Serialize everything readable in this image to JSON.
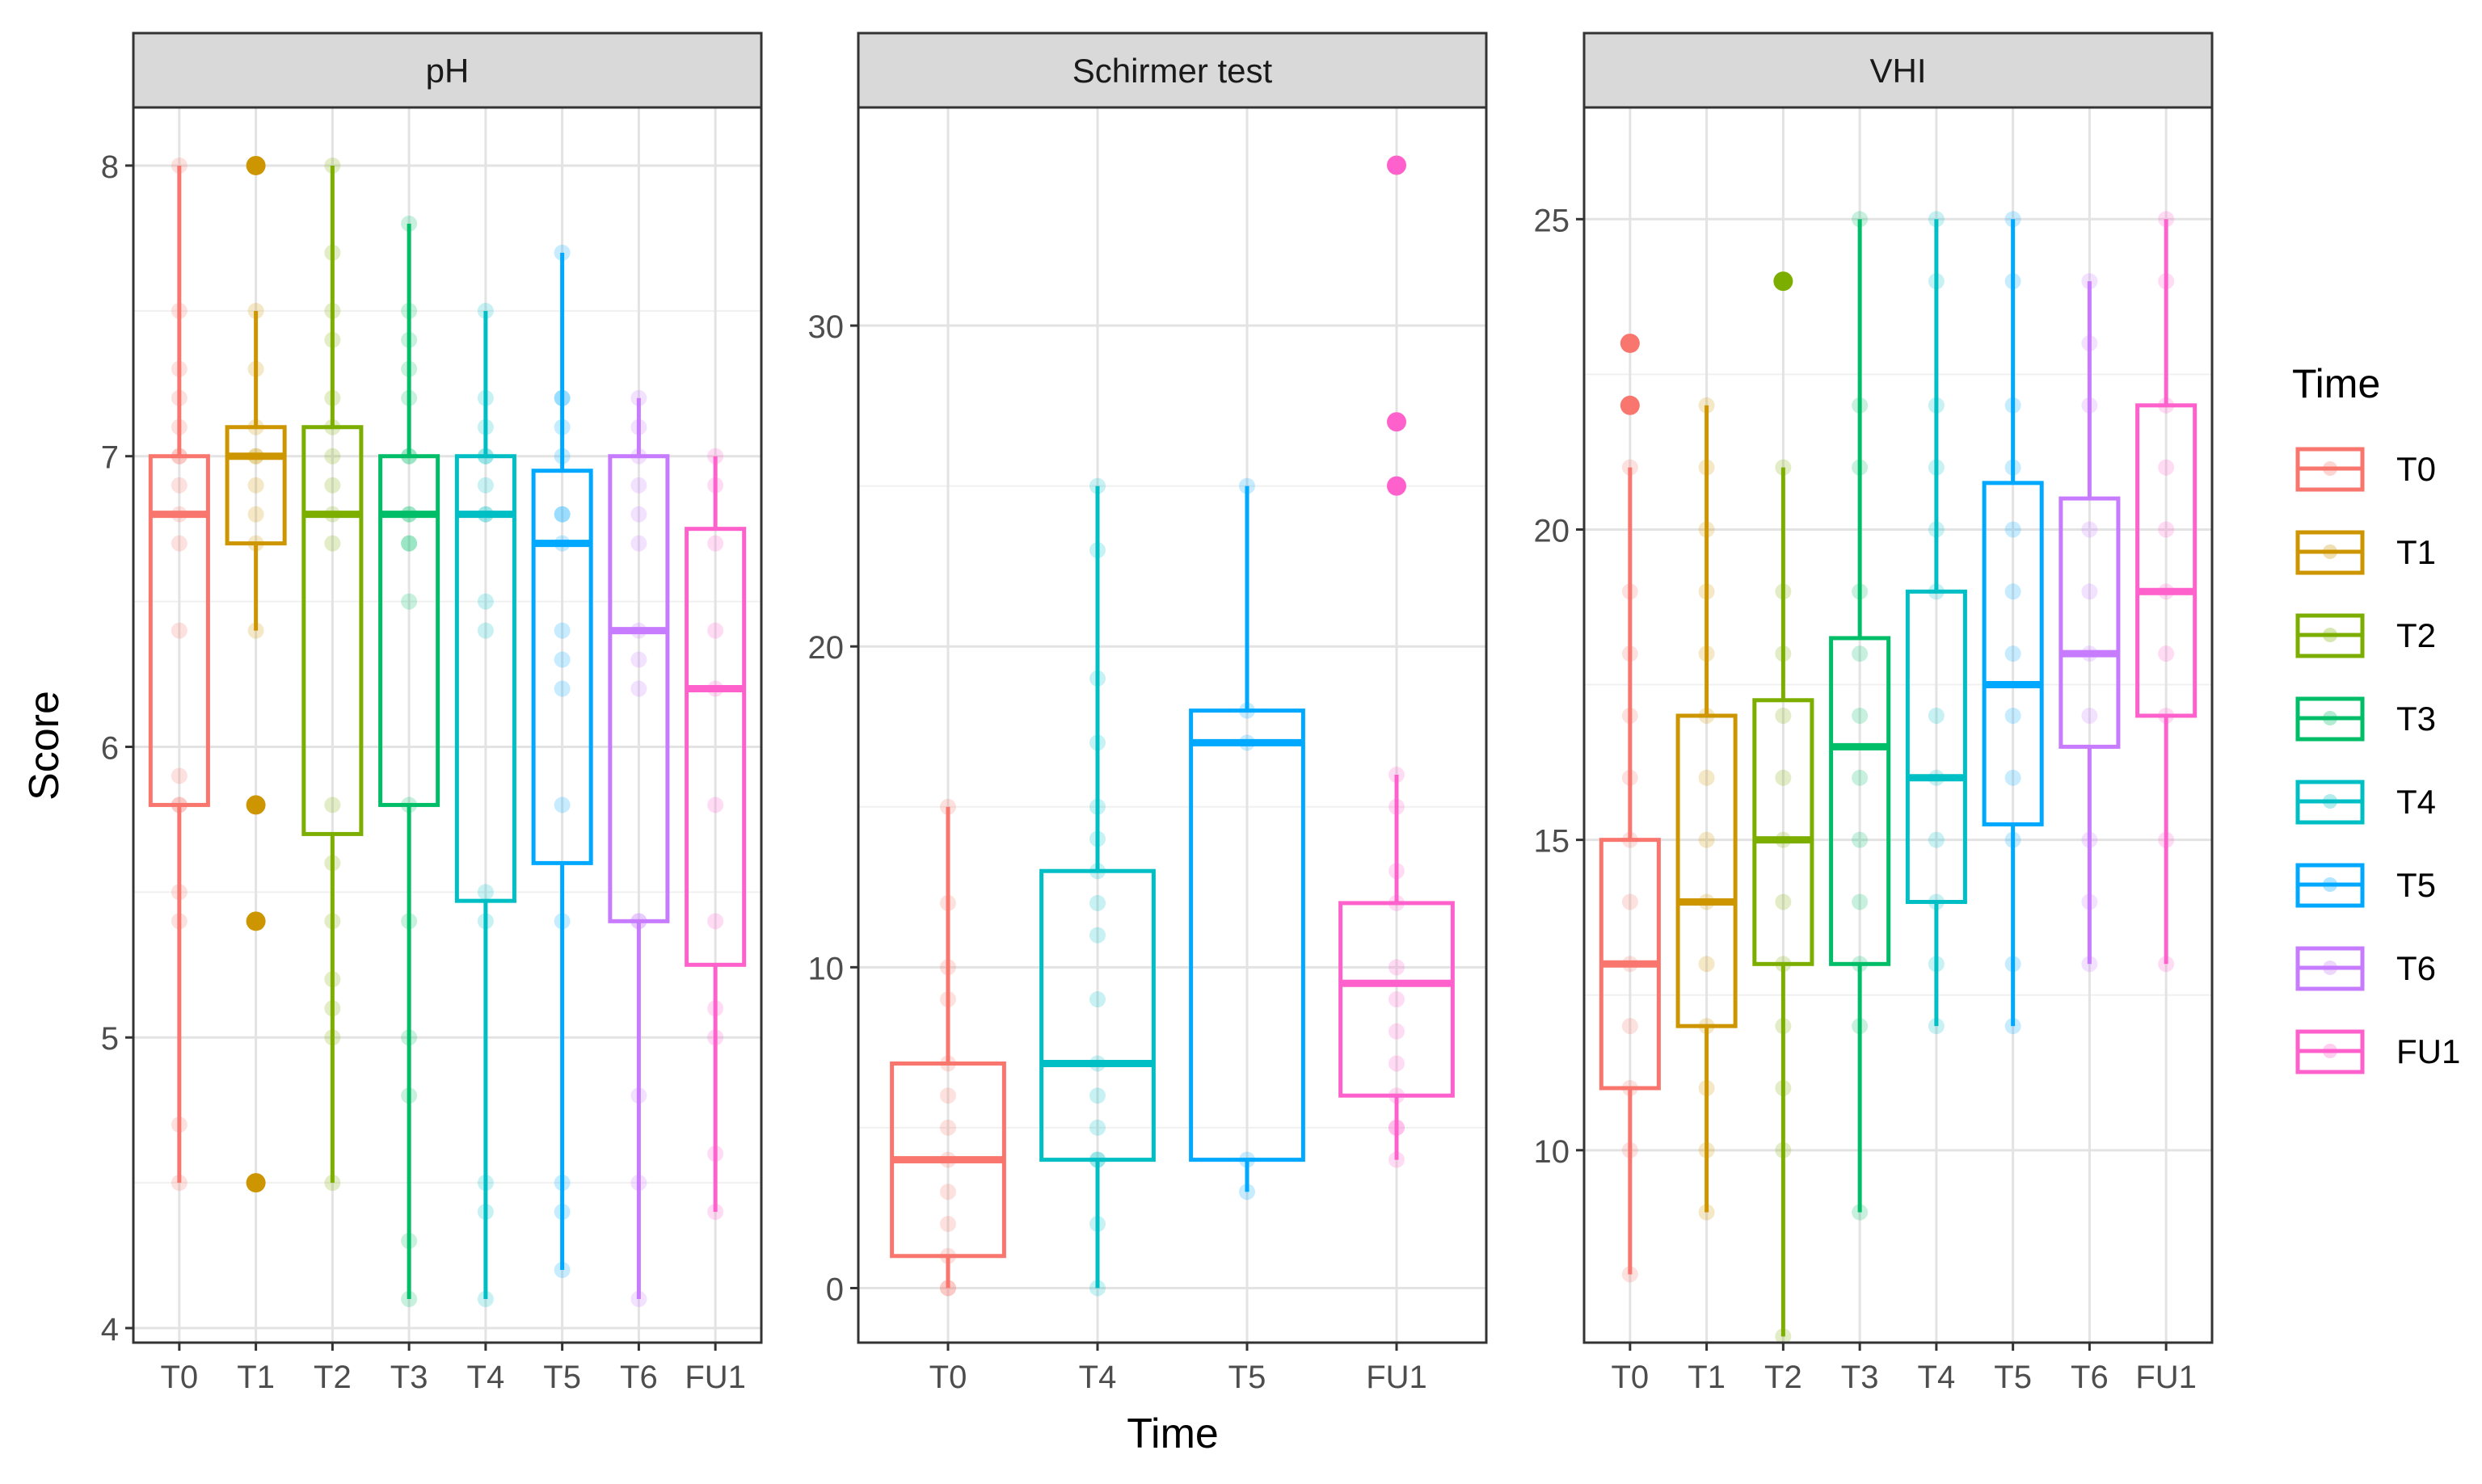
{
  "chart_data": {
    "type": "boxplot",
    "xlabel": "Time",
    "ylabel": "Score",
    "legend": {
      "title": "Time",
      "position": "right",
      "entries": [
        "T0",
        "T1",
        "T2",
        "T3",
        "T4",
        "T5",
        "T6",
        "FU1"
      ]
    },
    "colors": {
      "T0": "#F8766D",
      "T1": "#CD9600",
      "T2": "#7CAE00",
      "T3": "#00BE67",
      "T4": "#00BFC4",
      "T5": "#00A9FF",
      "T6": "#C77CFF",
      "FU1": "#FF61CC"
    },
    "panels": [
      {
        "title": "pH",
        "ylim": [
          3.95,
          8.2
        ],
        "yticks": [
          4,
          5,
          6,
          7,
          8
        ],
        "categories": [
          "T0",
          "T1",
          "T2",
          "T3",
          "T4",
          "T5",
          "T6",
          "FU1"
        ],
        "boxes": [
          {
            "group": "T0",
            "q1": 5.8,
            "median": 6.8,
            "q3": 7.0,
            "whisker_low": 4.5,
            "whisker_high": 8.0,
            "outliers": [],
            "points": [
              4.5,
              4.7,
              5.4,
              5.5,
              5.8,
              5.8,
              5.9,
              6.4,
              6.7,
              6.8,
              6.9,
              7.0,
              7.0,
              7.1,
              7.2,
              7.3,
              7.5,
              8.0
            ]
          },
          {
            "group": "T1",
            "q1": 6.7,
            "median": 7.0,
            "q3": 7.1,
            "whisker_low": 6.4,
            "whisker_high": 7.5,
            "outliers": [
              4.5,
              5.4,
              5.8,
              8.0
            ],
            "points": [
              4.5,
              5.4,
              5.8,
              6.4,
              6.7,
              6.8,
              6.9,
              7.0,
              7.0,
              7.1,
              7.3,
              7.5,
              8.0
            ]
          },
          {
            "group": "T2",
            "q1": 5.7,
            "median": 6.8,
            "q3": 7.1,
            "whisker_low": 4.5,
            "whisker_high": 8.0,
            "outliers": [],
            "points": [
              4.5,
              5.0,
              5.1,
              5.2,
              5.4,
              5.6,
              5.8,
              6.7,
              6.8,
              6.9,
              7.0,
              7.1,
              7.2,
              7.4,
              7.5,
              7.7,
              8.0
            ]
          },
          {
            "group": "T3",
            "q1": 5.8,
            "median": 6.8,
            "q3": 7.0,
            "whisker_low": 4.1,
            "whisker_high": 7.8,
            "outliers": [],
            "points": [
              4.1,
              4.3,
              4.8,
              5.0,
              5.4,
              5.8,
              6.5,
              6.7,
              6.7,
              6.8,
              6.8,
              7.0,
              7.0,
              7.2,
              7.3,
              7.4,
              7.5,
              7.8
            ]
          },
          {
            "group": "T4",
            "q1": 5.47,
            "median": 6.8,
            "q3": 7.0,
            "whisker_low": 4.1,
            "whisker_high": 7.5,
            "outliers": [],
            "points": [
              4.1,
              4.4,
              4.5,
              5.4,
              5.5,
              6.4,
              6.5,
              6.8,
              6.8,
              6.9,
              7.0,
              7.0,
              7.1,
              7.2,
              7.5
            ]
          },
          {
            "group": "T5",
            "q1": 5.6,
            "median": 6.7,
            "q3": 6.95,
            "whisker_low": 4.2,
            "whisker_high": 7.7,
            "outliers": [],
            "points": [
              4.2,
              4.4,
              4.5,
              5.4,
              5.8,
              6.2,
              6.3,
              6.4,
              6.7,
              6.8,
              6.8,
              7.0,
              7.1,
              7.2,
              7.2,
              7.7
            ]
          },
          {
            "group": "T6",
            "q1": 5.4,
            "median": 6.4,
            "q3": 7.0,
            "whisker_low": 4.1,
            "whisker_high": 7.2,
            "outliers": [],
            "points": [
              4.1,
              4.5,
              4.8,
              5.4,
              5.4,
              6.2,
              6.3,
              6.4,
              6.7,
              6.8,
              6.9,
              7.0,
              7.1,
              7.2
            ]
          },
          {
            "group": "FU1",
            "q1": 5.25,
            "median": 6.2,
            "q3": 6.75,
            "whisker_low": 4.4,
            "whisker_high": 7.0,
            "outliers": [],
            "points": [
              4.4,
              4.6,
              5.0,
              5.1,
              5.4,
              5.8,
              6.2,
              6.4,
              6.7,
              6.9,
              7.0
            ]
          }
        ]
      },
      {
        "title": "Schirmer test",
        "ylim": [
          -1.7,
          36.8
        ],
        "yticks": [
          0,
          10,
          20,
          30
        ],
        "categories": [
          "T0",
          "T4",
          "T5",
          "FU1"
        ],
        "boxes": [
          {
            "group": "T0",
            "q1": 1,
            "median": 4,
            "q3": 7,
            "whisker_low": 0,
            "whisker_high": 15,
            "outliers": [],
            "points": [
              0,
              0,
              1,
              2,
              3,
              4,
              5,
              6,
              7,
              9,
              10,
              12,
              15
            ]
          },
          {
            "group": "T4",
            "q1": 4,
            "median": 7,
            "q3": 13,
            "whisker_low": 0,
            "whisker_high": 25,
            "outliers": [],
            "points": [
              0,
              2,
              4,
              4,
              5,
              6,
              7,
              9,
              11,
              12,
              13,
              14,
              15,
              17,
              19,
              23,
              25
            ]
          },
          {
            "group": "T5",
            "q1": 4,
            "median": 17,
            "q3": 18,
            "whisker_low": 3,
            "whisker_high": 25,
            "outliers": [],
            "points": [
              3,
              4,
              17,
              18,
              25
            ]
          },
          {
            "group": "FU1",
            "q1": 6,
            "median": 9.5,
            "q3": 12,
            "whisker_low": 4,
            "whisker_high": 16,
            "outliers": [
              25,
              27,
              35
            ],
            "points": [
              4,
              5,
              5,
              6,
              7,
              8,
              9,
              10,
              12,
              13,
              15,
              16,
              25,
              27,
              35
            ]
          }
        ]
      },
      {
        "title": "VHI",
        "ylim": [
          6.9,
          26.8
        ],
        "yticks": [
          10,
          15,
          20,
          25
        ],
        "categories": [
          "T0",
          "T1",
          "T2",
          "T3",
          "T4",
          "T5",
          "T6",
          "FU1"
        ],
        "boxes": [
          {
            "group": "T0",
            "q1": 11,
            "median": 13,
            "q3": 15,
            "whisker_low": 8,
            "whisker_high": 21,
            "outliers": [
              22,
              23
            ],
            "points": [
              8,
              10,
              11,
              12,
              13,
              14,
              15,
              16,
              17,
              18,
              19,
              21,
              22,
              23
            ]
          },
          {
            "group": "T1",
            "q1": 12,
            "median": 14,
            "q3": 17,
            "whisker_low": 9,
            "whisker_high": 22,
            "outliers": [],
            "points": [
              9,
              10,
              11,
              12,
              13,
              14,
              15,
              16,
              17,
              18,
              19,
              20,
              21,
              22
            ]
          },
          {
            "group": "T2",
            "q1": 13,
            "median": 15,
            "q3": 17.25,
            "whisker_low": 7,
            "whisker_high": 21,
            "outliers": [
              24
            ],
            "points": [
              7,
              10,
              11,
              12,
              13,
              14,
              15,
              16,
              17,
              18,
              19,
              21,
              24
            ]
          },
          {
            "group": "T3",
            "q1": 13,
            "median": 16.5,
            "q3": 18.25,
            "whisker_low": 9,
            "whisker_high": 25,
            "outliers": [],
            "points": [
              9,
              12,
              13,
              14,
              15,
              16,
              17,
              18,
              19,
              21,
              22,
              25
            ]
          },
          {
            "group": "T4",
            "q1": 14,
            "median": 16,
            "q3": 19,
            "whisker_low": 12,
            "whisker_high": 25,
            "outliers": [],
            "points": [
              12,
              13,
              14,
              15,
              16,
              17,
              19,
              20,
              21,
              22,
              24,
              25
            ]
          },
          {
            "group": "T5",
            "q1": 15.25,
            "median": 17.5,
            "q3": 20.75,
            "whisker_low": 12,
            "whisker_high": 25,
            "outliers": [],
            "points": [
              12,
              13,
              15,
              16,
              17,
              18,
              19,
              20,
              21,
              22,
              24,
              25
            ]
          },
          {
            "group": "T6",
            "q1": 16.5,
            "median": 18,
            "q3": 20.5,
            "whisker_low": 13,
            "whisker_high": 24,
            "outliers": [],
            "points": [
              13,
              14,
              15,
              17,
              18,
              19,
              20,
              22,
              23,
              24
            ]
          },
          {
            "group": "FU1",
            "q1": 17,
            "median": 19,
            "q3": 22,
            "whisker_low": 13,
            "whisker_high": 25,
            "outliers": [],
            "points": [
              13,
              15,
              17,
              18,
              19,
              20,
              21,
              22,
              24,
              25
            ]
          }
        ]
      }
    ]
  }
}
